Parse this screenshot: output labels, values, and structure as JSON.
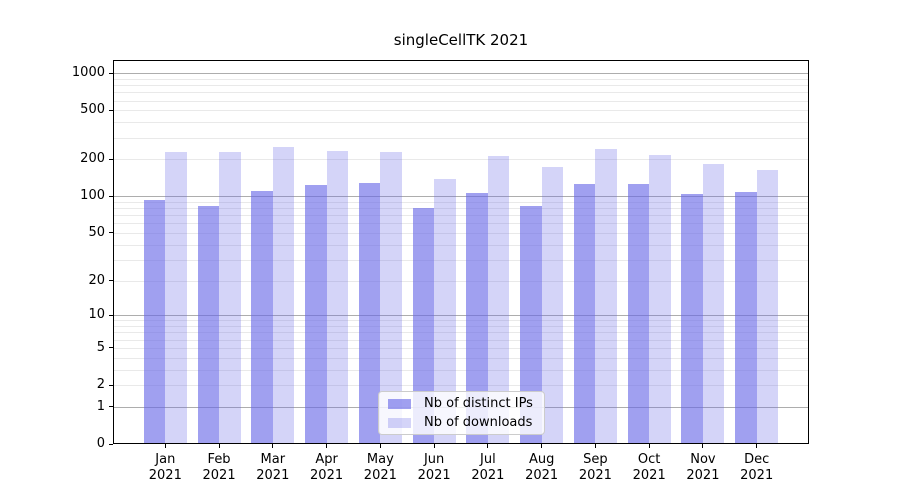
{
  "figure": {
    "title": "singleCellTK 2021"
  },
  "chart_data": {
    "type": "bar",
    "title": "singleCellTK 2021",
    "yscale": "log10(1+y)",
    "categories": [
      "Jan 2021",
      "Feb 2021",
      "Mar 2021",
      "Apr 2021",
      "May 2021",
      "Jun 2021",
      "Jul 2021",
      "Aug 2021",
      "Sep 2021",
      "Oct 2021",
      "Nov 2021",
      "Dec 2021"
    ],
    "series": [
      {
        "name": "Nb of distinct IPs",
        "color": "rgba(102,102,230,0.62)",
        "values": [
          94,
          84,
          110,
          123,
          129,
          80,
          107,
          84,
          125,
          127,
          105,
          108
        ]
      },
      {
        "name": "Nb of downloads",
        "color": "rgba(102,102,230,0.28)",
        "values": [
          230,
          231,
          253,
          236,
          228,
          138,
          212,
          175,
          245,
          217,
          183,
          164
        ]
      }
    ],
    "y_ticks": [
      0,
      1,
      2,
      5,
      10,
      20,
      50,
      100,
      200,
      500,
      1000
    ],
    "ylim": [
      0,
      1280
    ],
    "xlabel": "",
    "ylabel": "",
    "grid": {
      "enabled": true,
      "major_color": "#adadad",
      "minor_color": "#e9e9e9"
    },
    "legend": {
      "position": "lower center",
      "items": [
        "Nb of distinct IPs",
        "Nb of downloads"
      ]
    }
  }
}
